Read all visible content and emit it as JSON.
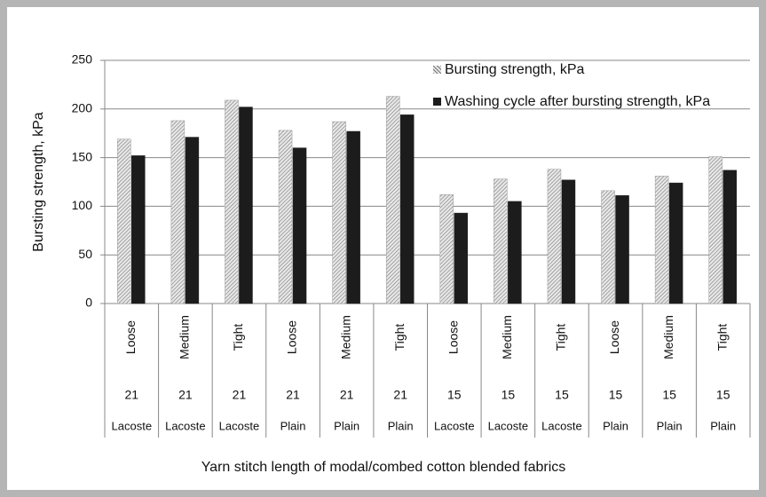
{
  "chart_data": {
    "type": "bar",
    "y_label": "Bursting strength, kPa",
    "x_label": "Yarn stitch length of modal/combed cotton blended fabrics",
    "categories": [
      [
        "Loose",
        "21",
        "Lacoste"
      ],
      [
        "Medium",
        "21",
        "Lacoste"
      ],
      [
        "Tight",
        "21",
        "Lacoste"
      ],
      [
        "Loose",
        "21",
        "Plain"
      ],
      [
        "Medium",
        "21",
        "Plain"
      ],
      [
        "Tight",
        "21",
        "Plain"
      ],
      [
        "Loose",
        "15",
        "Lacoste"
      ],
      [
        "Medium",
        "15",
        "Lacoste"
      ],
      [
        "Tight",
        "15",
        "Lacoste"
      ],
      [
        "Loose",
        "15",
        "Plain"
      ],
      [
        "Medium",
        "15",
        "Plain"
      ],
      [
        "Tight",
        "15",
        "Plain"
      ]
    ],
    "series": [
      {
        "name": "Bursting strength, kPa",
        "color": "#9a9a9a",
        "pattern": "hatch",
        "values": [
          169,
          188,
          209,
          178,
          187,
          213,
          112,
          128,
          138,
          116,
          131,
          151
        ]
      },
      {
        "name": "Washing cycle after bursting strength, kPa",
        "color": "#1c1c1c",
        "values": [
          152,
          171,
          202,
          160,
          177,
          194,
          93,
          105,
          127,
          111,
          124,
          137
        ]
      }
    ],
    "ylim": [
      0,
      250
    ],
    "yticks": [
      0,
      50,
      100,
      150,
      200,
      250
    ],
    "grid": true
  }
}
